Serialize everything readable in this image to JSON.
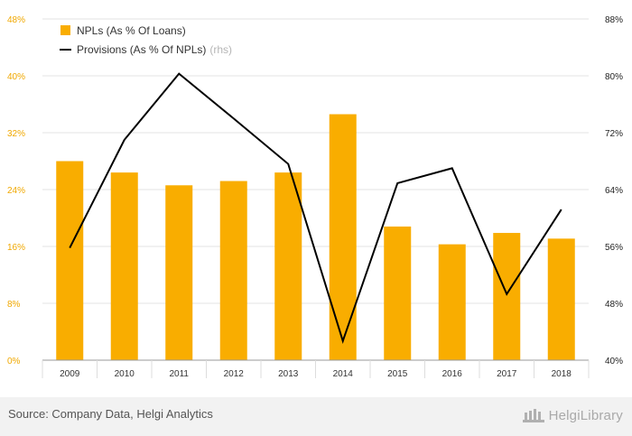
{
  "chart_data": {
    "type": "bar",
    "categories": [
      "2009",
      "2010",
      "2011",
      "2012",
      "2013",
      "2014",
      "2015",
      "2016",
      "2017",
      "2018"
    ],
    "series": [
      {
        "name": "NPLs (As % Of Loans)",
        "kind": "bar",
        "axis": "left",
        "color": "#f9ad00",
        "values": [
          28.0,
          26.4,
          24.6,
          25.2,
          26.4,
          34.6,
          18.8,
          16.3,
          17.9,
          17.1
        ]
      },
      {
        "name": "Provisions (As % Of NPLs)",
        "name_suffix": "(rhs)",
        "kind": "line",
        "axis": "right",
        "color": "#000000",
        "values": [
          55.8,
          71.0,
          80.3,
          74.0,
          67.6,
          42.7,
          64.9,
          67.0,
          49.3,
          61.2
        ]
      }
    ],
    "y_left": {
      "ylim": [
        0,
        48
      ],
      "ticks": [
        "0%",
        "8%",
        "16%",
        "24%",
        "32%",
        "40%",
        "48%"
      ],
      "color": "#f0a800"
    },
    "y_right": {
      "ylim": [
        40,
        88
      ],
      "ticks": [
        "40%",
        "48%",
        "56%",
        "64%",
        "72%",
        "80%",
        "88%"
      ]
    },
    "grid": true,
    "legend_position": "top-left"
  },
  "footer": {
    "source": "Source: Company Data, Helgi Analytics",
    "brand": "HelgiLibrary"
  }
}
